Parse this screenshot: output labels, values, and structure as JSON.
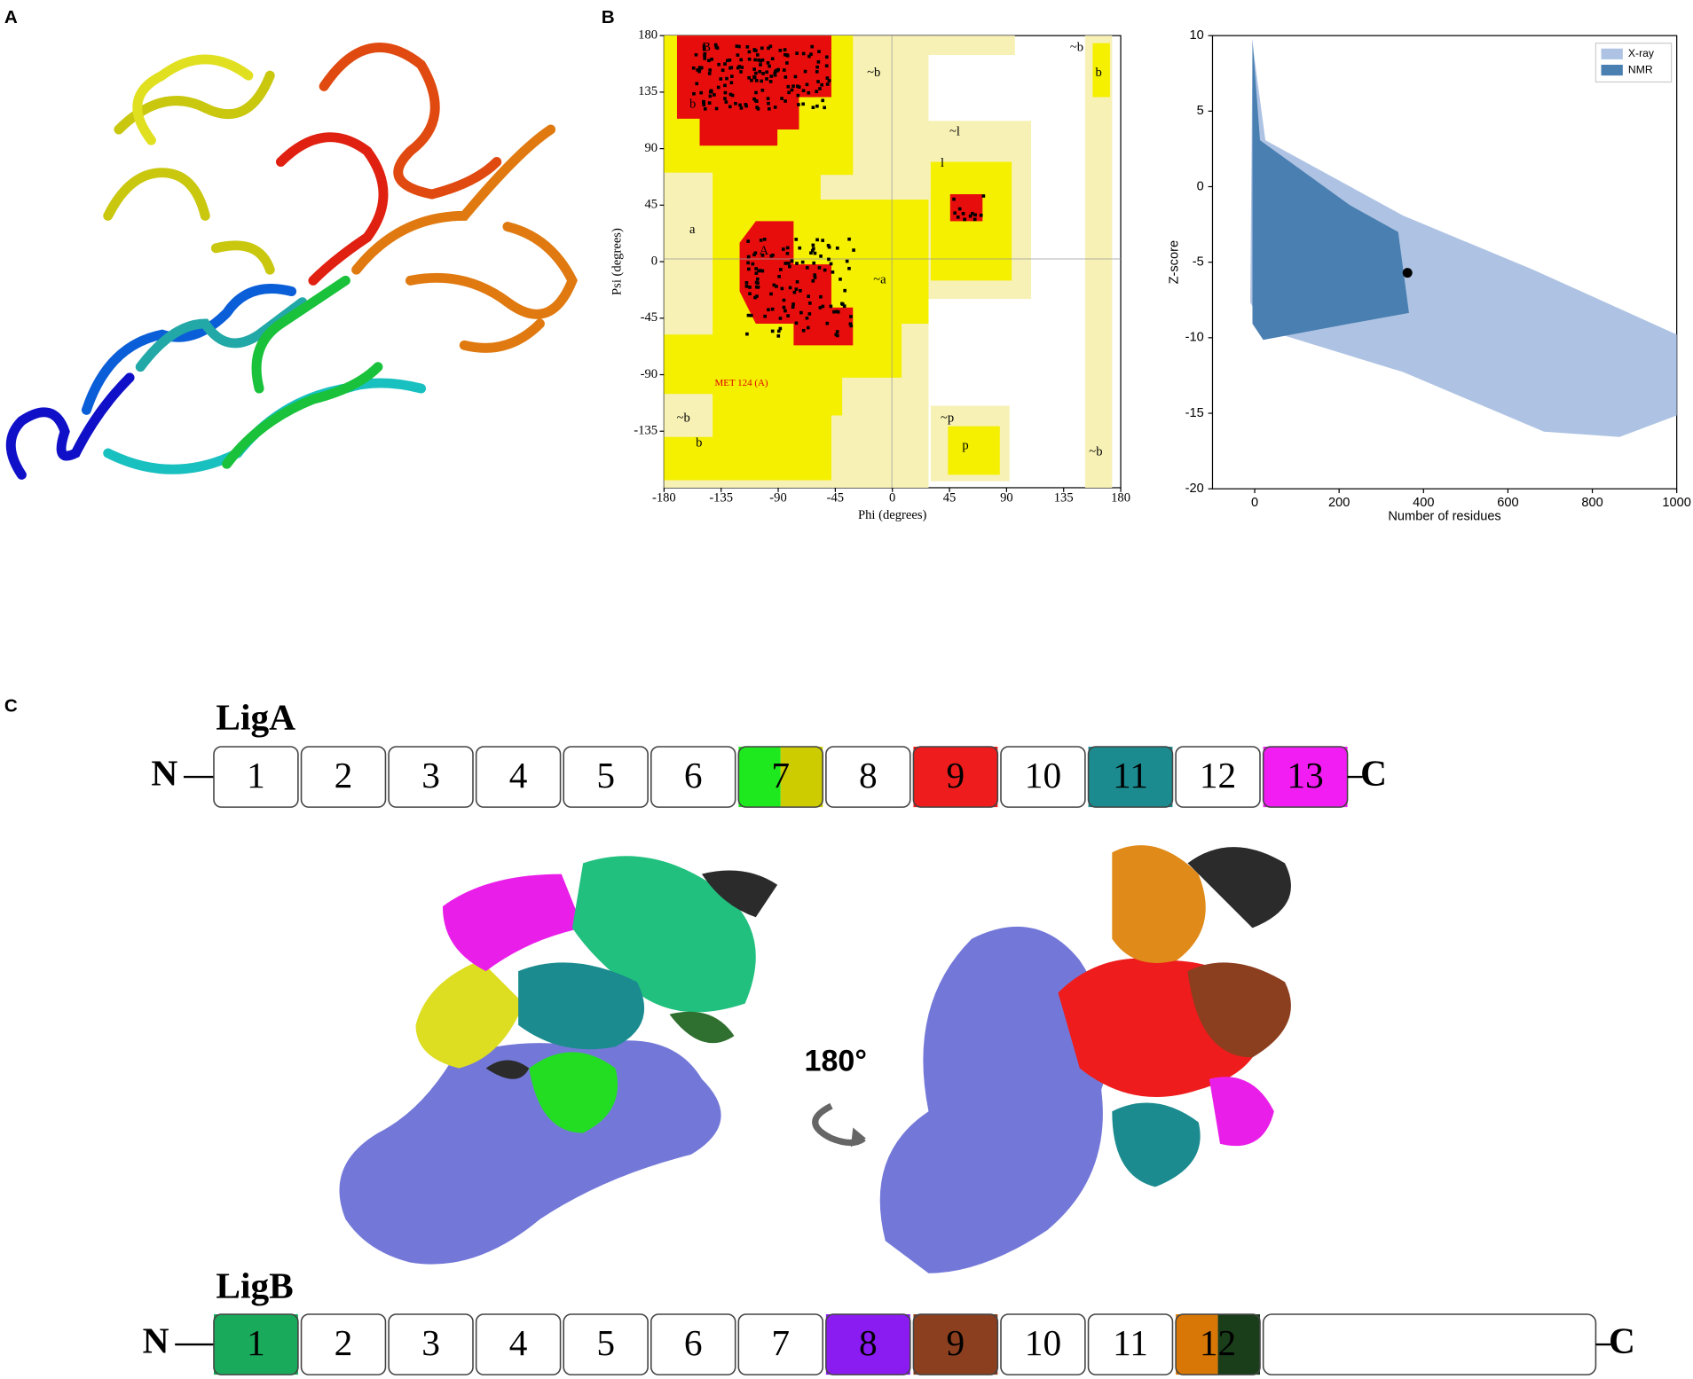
{
  "panel_labels": [
    "A",
    "B",
    "C"
  ],
  "ramachandran": {
    "x_label": "Phi (degrees)",
    "y_label": "Psi (degrees)",
    "xlim": [
      -180,
      180
    ],
    "ylim": [
      -180,
      180
    ],
    "xticks": [
      -180,
      -135,
      -90,
      -45,
      0,
      45,
      90,
      135,
      180
    ],
    "yticks": [
      180,
      135,
      90,
      45,
      0,
      -45,
      -90,
      -135
    ],
    "region_labels": [
      {
        "text": "B",
        "phi": -150,
        "psi": 170
      },
      {
        "text": "b",
        "phi": -160,
        "psi": 125
      },
      {
        "text": "~b",
        "phi": -20,
        "psi": 150
      },
      {
        "text": "A",
        "phi": -105,
        "psi": 8
      },
      {
        "text": "a",
        "phi": -160,
        "psi": 25
      },
      {
        "text": "~a",
        "phi": -15,
        "psi": -15
      },
      {
        "text": "l",
        "phi": 38,
        "psi": 78
      },
      {
        "text": "~l",
        "phi": 45,
        "psi": 103
      },
      {
        "text": "~b",
        "phi": -170,
        "psi": -125
      },
      {
        "text": "b",
        "phi": -155,
        "psi": -145
      },
      {
        "text": "~p",
        "phi": 38,
        "psi": -125
      },
      {
        "text": "p",
        "phi": 55,
        "psi": -147
      },
      {
        "text": "~b",
        "phi": 140,
        "psi": 170
      },
      {
        "text": "b",
        "phi": 160,
        "psi": 150
      },
      {
        "text": "~b",
        "phi": 155,
        "psi": -152
      },
      {
        "text": "MET 124 (A)",
        "phi": -140,
        "psi": -97,
        "color": "#e00000"
      }
    ]
  },
  "zscore": {
    "x_label": "Number of residues",
    "y_label": "Z-score",
    "xlim": [
      -100,
      1000
    ],
    "ylim": [
      -20,
      10
    ],
    "xticks": [
      0,
      200,
      400,
      600,
      800,
      1000
    ],
    "yticks": [
      10,
      5,
      0,
      -5,
      -10,
      -15,
      -20
    ],
    "legend": [
      {
        "name": "X-ray",
        "color": "#aec3e3"
      },
      {
        "name": "NMR",
        "color": "#4a7fb1"
      }
    ],
    "highlight": {
      "x": 362,
      "y": -5.7
    }
  },
  "rotation_label": "180°",
  "constructs": [
    {
      "name": "LigA",
      "n": "N",
      "c": "C",
      "domains": [
        {
          "label": "1",
          "colors": [
            "#fff"
          ]
        },
        {
          "label": "2",
          "colors": [
            "#fff"
          ]
        },
        {
          "label": "3",
          "colors": [
            "#fff"
          ]
        },
        {
          "label": "4",
          "colors": [
            "#fff"
          ]
        },
        {
          "label": "5",
          "colors": [
            "#fff"
          ]
        },
        {
          "label": "6",
          "colors": [
            "#fff"
          ]
        },
        {
          "label": "7",
          "colors": [
            "#1ee81e",
            "#cccc00"
          ]
        },
        {
          "label": "8",
          "colors": [
            "#fff"
          ]
        },
        {
          "label": "9",
          "colors": [
            "#ee1c1c"
          ]
        },
        {
          "label": "10",
          "colors": [
            "#fff"
          ]
        },
        {
          "label": "11",
          "colors": [
            "#1b8b8f"
          ]
        },
        {
          "label": "12",
          "colors": [
            "#fff"
          ]
        },
        {
          "label": "13",
          "colors": [
            "#f21df2"
          ]
        }
      ]
    },
    {
      "name": "LigB",
      "n": "N",
      "c": "C",
      "domains": [
        {
          "label": "1",
          "colors": [
            "#1aaa5c"
          ]
        },
        {
          "label": "2",
          "colors": [
            "#fff"
          ]
        },
        {
          "label": "3",
          "colors": [
            "#fff"
          ]
        },
        {
          "label": "4",
          "colors": [
            "#fff"
          ]
        },
        {
          "label": "5",
          "colors": [
            "#fff"
          ]
        },
        {
          "label": "6",
          "colors": [
            "#fff"
          ]
        },
        {
          "label": "7",
          "colors": [
            "#fff"
          ]
        },
        {
          "label": "8",
          "colors": [
            "#8a1cf2"
          ]
        },
        {
          "label": "9",
          "colors": [
            "#8b3f1f"
          ]
        },
        {
          "label": "10",
          "colors": [
            "#fff"
          ]
        },
        {
          "label": "11",
          "colors": [
            "#fff"
          ]
        },
        {
          "label": "12",
          "colors": [
            "#d97706",
            "#1a3d1a"
          ]
        }
      ]
    }
  ]
}
